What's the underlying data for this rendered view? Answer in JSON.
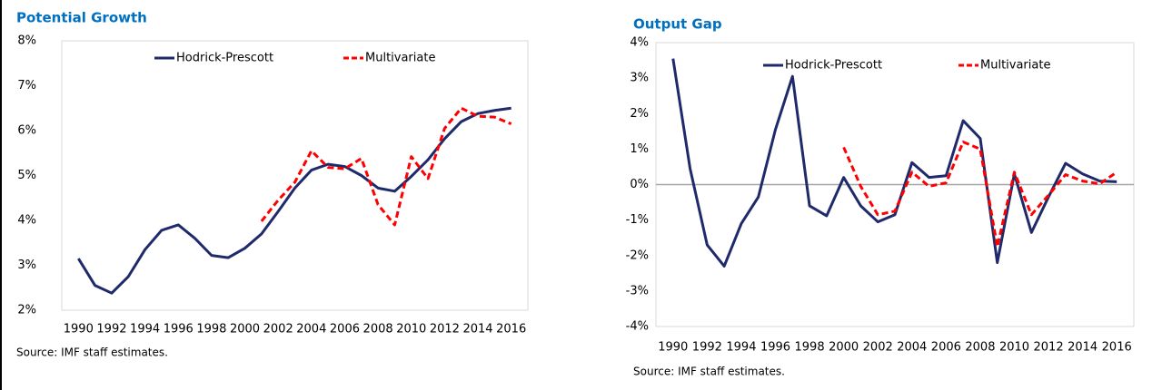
{
  "chart_data": [
    {
      "type": "line",
      "title": "Potential Growth",
      "note": "Source: IMF staff estimates.",
      "x": [
        1990,
        1991,
        1992,
        1993,
        1994,
        1995,
        1996,
        1997,
        1998,
        1999,
        2000,
        2001,
        2002,
        2003,
        2004,
        2005,
        2006,
        2007,
        2008,
        2009,
        2010,
        2011,
        2012,
        2013,
        2014,
        2015,
        2016
      ],
      "series": [
        {
          "name": "Hodrick-Prescott",
          "color": "#1f2a6b",
          "dashed": false,
          "values": [
            3.15,
            2.55,
            2.38,
            2.75,
            3.35,
            3.78,
            3.9,
            3.6,
            3.22,
            3.17,
            3.38,
            3.7,
            4.2,
            4.72,
            5.12,
            5.25,
            5.2,
            5.0,
            4.72,
            4.65,
            4.98,
            5.35,
            5.82,
            6.2,
            6.38,
            6.45,
            6.5
          ]
        },
        {
          "name": "Multivariate",
          "color": "#ff0000",
          "dashed": true,
          "values": [
            null,
            null,
            null,
            null,
            null,
            null,
            null,
            null,
            null,
            null,
            null,
            3.98,
            4.45,
            4.85,
            5.55,
            5.18,
            5.15,
            5.38,
            4.35,
            3.9,
            5.42,
            4.93,
            6.05,
            6.5,
            6.32,
            6.3,
            6.15
          ]
        }
      ],
      "xlim": [
        1989,
        2017
      ],
      "xticks": [
        1990,
        1992,
        1994,
        1996,
        1998,
        2000,
        2002,
        2004,
        2006,
        2008,
        2010,
        2012,
        2014,
        2016
      ],
      "ylim": [
        2,
        8
      ],
      "yticks": [
        {
          "value": 2,
          "label": "2%"
        },
        {
          "value": 3,
          "label": "3%"
        },
        {
          "value": 4,
          "label": "4%"
        },
        {
          "value": 5,
          "label": "5%"
        },
        {
          "value": 6,
          "label": "6%"
        },
        {
          "value": 7,
          "label": "7%"
        },
        {
          "value": 8,
          "label": "8%"
        }
      ]
    },
    {
      "type": "line",
      "title": "Output Gap",
      "note": "Source: IMF staff estimates.",
      "x": [
        1990,
        1991,
        1992,
        1993,
        1994,
        1995,
        1996,
        1997,
        1998,
        1999,
        2000,
        2001,
        2002,
        2003,
        2004,
        2005,
        2006,
        2007,
        2008,
        2009,
        2010,
        2011,
        2012,
        2013,
        2014,
        2015,
        2016
      ],
      "series": [
        {
          "name": "Hodrick-Prescott",
          "color": "#1f2a6b",
          "dashed": false,
          "values": [
            3.55,
            0.45,
            -1.7,
            -2.3,
            -1.1,
            -0.35,
            1.55,
            3.05,
            -0.6,
            -0.88,
            0.2,
            -0.6,
            -1.05,
            -0.85,
            0.62,
            0.2,
            0.25,
            1.8,
            1.3,
            -2.2,
            0.3,
            -1.35,
            -0.35,
            0.6,
            0.3,
            0.1,
            0.08
          ]
        },
        {
          "name": "Multivariate",
          "color": "#ff0000",
          "dashed": true,
          "values": [
            null,
            null,
            null,
            null,
            null,
            null,
            null,
            null,
            null,
            null,
            1.05,
            -0.05,
            -0.85,
            -0.75,
            0.35,
            -0.05,
            0.05,
            1.2,
            1.0,
            -1.75,
            0.35,
            -0.85,
            -0.3,
            0.28,
            0.1,
            0.02,
            0.35
          ]
        }
      ],
      "xlim": [
        1989,
        2017
      ],
      "xticks": [
        1990,
        1992,
        1994,
        1996,
        1998,
        2000,
        2002,
        2004,
        2006,
        2008,
        2010,
        2012,
        2014,
        2016
      ],
      "ylim": [
        -4,
        4
      ],
      "yticks": [
        {
          "value": -4,
          "label": "-4%"
        },
        {
          "value": -3,
          "label": "-3%"
        },
        {
          "value": -2,
          "label": "-2%"
        },
        {
          "value": -1,
          "label": "-1%"
        },
        {
          "value": 0,
          "label": "0%"
        },
        {
          "value": 1,
          "label": "1%"
        },
        {
          "value": 2,
          "label": "2%"
        },
        {
          "value": 3,
          "label": "3%"
        },
        {
          "value": 4,
          "label": "4%"
        }
      ]
    }
  ]
}
